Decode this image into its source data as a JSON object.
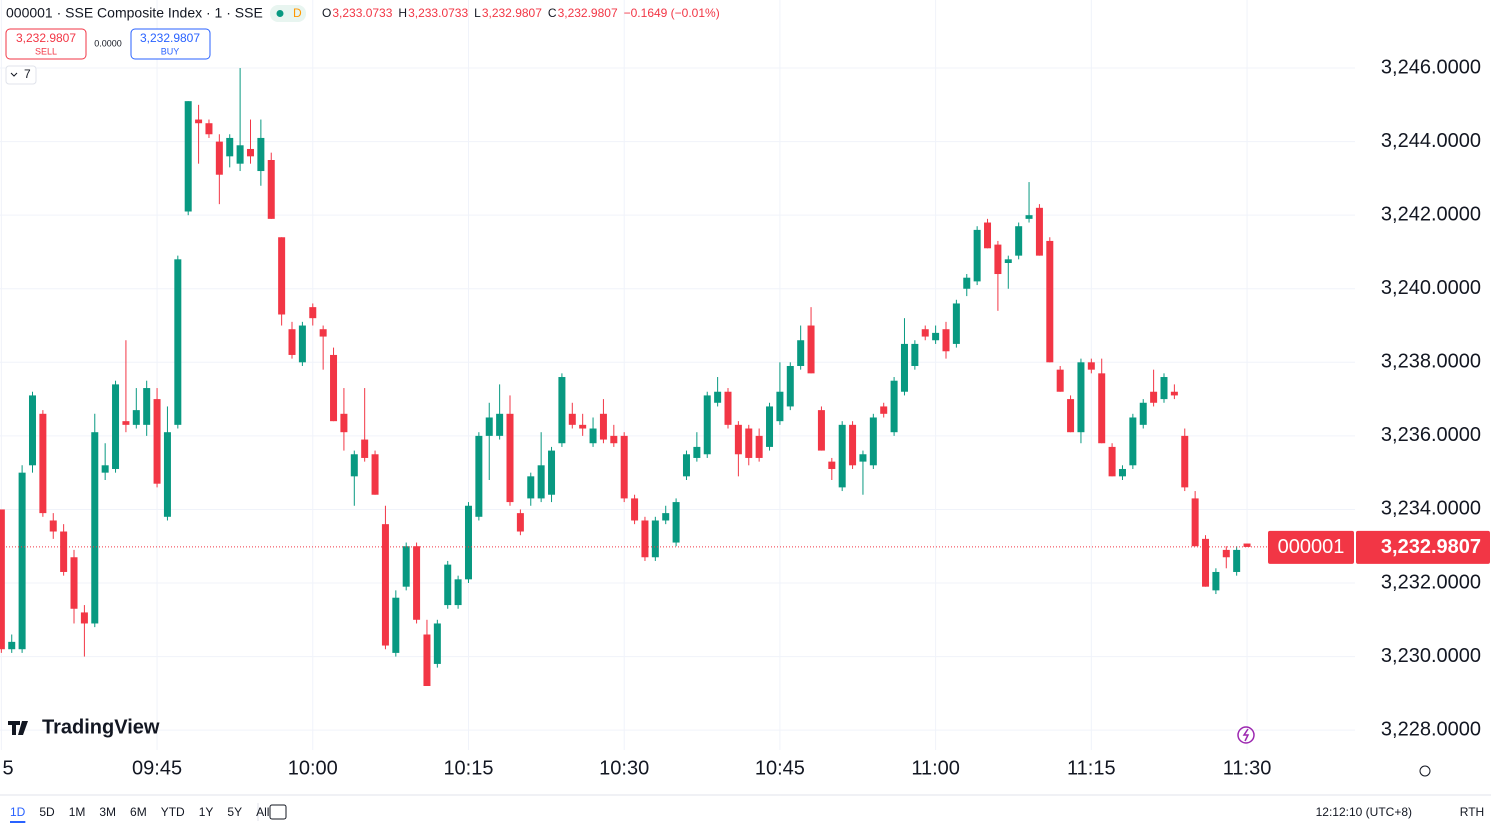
{
  "chart_data": {
    "type": "candlestick",
    "title": "000001 · SSE Composite Index · 1 · SSE",
    "badge": "D",
    "ohlc_legend": [
      {
        "label": "O",
        "value": "3,233.0733"
      },
      {
        "label": "H",
        "value": "3,233.0733"
      },
      {
        "label": "L",
        "value": "3,232.9807"
      },
      {
        "label": "C",
        "value": "3,232.9807"
      }
    ],
    "change": "−0.1649 (−0.01%)",
    "sell": {
      "price": "3,232.9807",
      "label": "SELL"
    },
    "spread": "0.0000",
    "buy": {
      "price": "3,232.9807",
      "label": "BUY"
    },
    "indicators_count": "7",
    "watermark": "TradingView",
    "up_color": "#089981",
    "down_color": "#f23645",
    "grid": true,
    "ylim": [
      3227.46,
      3247.85
    ],
    "xlim": [
      -0.13,
      130.4
    ],
    "yticks": [
      {
        "value": 3228,
        "label": "3,228.0000"
      },
      {
        "value": 3230,
        "label": "3,230.0000"
      },
      {
        "value": 3232,
        "label": "3,232.0000"
      },
      {
        "value": 3234,
        "label": "3,234.0000"
      },
      {
        "value": 3236,
        "label": "3,236.0000"
      },
      {
        "value": 3238,
        "label": "3,238.0000"
      },
      {
        "value": 3240,
        "label": "3,240.0000"
      },
      {
        "value": 3242,
        "label": "3,242.0000"
      },
      {
        "value": 3244,
        "label": "3,244.0000"
      },
      {
        "value": 3246,
        "label": "3,246.0000"
      }
    ],
    "xticks": [
      {
        "value": 0,
        "label": "5"
      },
      {
        "value": 15,
        "label": "09:45"
      },
      {
        "value": 30,
        "label": "10:00"
      },
      {
        "value": 45,
        "label": "10:15"
      },
      {
        "value": 60,
        "label": "10:30"
      },
      {
        "value": 75,
        "label": "10:45"
      },
      {
        "value": 90,
        "label": "11:00"
      },
      {
        "value": 105,
        "label": "11:15"
      },
      {
        "value": 120,
        "label": "11:30"
      }
    ],
    "last_price": {
      "value": 3232.9807,
      "label": "3,232.9807",
      "symbol": "000001"
    },
    "candles": [
      [
        3234.0,
        3234.0,
        3230.1,
        3230.2
      ],
      [
        3230.2,
        3230.6,
        3230.1,
        3230.4
      ],
      [
        3230.2,
        3235.2,
        3230.1,
        3235.0
      ],
      [
        3235.2,
        3237.2,
        3235.0,
        3237.1
      ],
      [
        3236.6,
        3236.7,
        3233.8,
        3233.9
      ],
      [
        3233.7,
        3233.9,
        3233.2,
        3233.4
      ],
      [
        3233.4,
        3233.6,
        3232.2,
        3232.3
      ],
      [
        3232.7,
        3232.9,
        3230.9,
        3231.3
      ],
      [
        3231.2,
        3231.4,
        3230.0,
        3230.9
      ],
      [
        3230.9,
        3236.6,
        3230.8,
        3236.1
      ],
      [
        3235.0,
        3235.8,
        3234.8,
        3235.2
      ],
      [
        3235.1,
        3237.5,
        3235.0,
        3237.4
      ],
      [
        3236.4,
        3238.6,
        3236.1,
        3236.3
      ],
      [
        3236.3,
        3237.3,
        3236.2,
        3236.7
      ],
      [
        3236.3,
        3237.5,
        3236.0,
        3237.3
      ],
      [
        3237.0,
        3237.3,
        3234.6,
        3234.7
      ],
      [
        3233.8,
        3236.8,
        3233.7,
        3236.1
      ],
      [
        3236.3,
        3240.9,
        3236.2,
        3240.8
      ],
      [
        3242.1,
        3245.1,
        3242.0,
        3245.1
      ],
      [
        3244.6,
        3245.0,
        3243.4,
        3244.5
      ],
      [
        3244.5,
        3244.6,
        3244.1,
        3244.2
      ],
      [
        3244.0,
        3244.2,
        3242.3,
        3243.1
      ],
      [
        3243.6,
        3244.2,
        3243.3,
        3244.1
      ],
      [
        3243.4,
        3246.0,
        3243.2,
        3243.9
      ],
      [
        3243.8,
        3244.6,
        3243.4,
        3243.6
      ],
      [
        3243.2,
        3244.6,
        3242.8,
        3244.1
      ],
      [
        3243.5,
        3243.7,
        3241.9,
        3241.9
      ],
      [
        3241.4,
        3241.4,
        3239.0,
        3239.3
      ],
      [
        3238.9,
        3239.1,
        3238.1,
        3238.2
      ],
      [
        3238.0,
        3239.1,
        3237.9,
        3239.0
      ],
      [
        3239.5,
        3239.6,
        3239.0,
        3239.2
      ],
      [
        3238.9,
        3239.0,
        3237.8,
        3238.7
      ],
      [
        3238.2,
        3238.4,
        3236.4,
        3236.4
      ],
      [
        3236.6,
        3237.3,
        3235.6,
        3236.1
      ],
      [
        3234.9,
        3235.6,
        3234.1,
        3235.5
      ],
      [
        3235.9,
        3237.3,
        3235.3,
        3235.4
      ],
      [
        3235.5,
        3235.6,
        3234.4,
        3234.4
      ],
      [
        3233.6,
        3234.1,
        3230.2,
        3230.3
      ],
      [
        3230.1,
        3231.8,
        3230.0,
        3231.6
      ],
      [
        3231.9,
        3233.1,
        3231.8,
        3233.0
      ],
      [
        3233.0,
        3233.1,
        3230.9,
        3231.0
      ],
      [
        3230.6,
        3231.0,
        3229.2,
        3229.2
      ],
      [
        3229.8,
        3231.0,
        3229.7,
        3230.9
      ],
      [
        3231.4,
        3232.6,
        3231.3,
        3232.5
      ],
      [
        3231.4,
        3232.2,
        3231.3,
        3232.1
      ],
      [
        3232.1,
        3234.2,
        3232.0,
        3234.1
      ],
      [
        3233.8,
        3236.1,
        3233.7,
        3236.0
      ],
      [
        3236.0,
        3236.9,
        3234.8,
        3236.5
      ],
      [
        3236.0,
        3237.4,
        3235.9,
        3236.6
      ],
      [
        3236.6,
        3237.1,
        3234.1,
        3234.2
      ],
      [
        3233.9,
        3234.0,
        3233.3,
        3233.4
      ],
      [
        3234.3,
        3235.0,
        3234.1,
        3234.9
      ],
      [
        3234.3,
        3236.1,
        3234.2,
        3235.2
      ],
      [
        3234.4,
        3235.7,
        3234.2,
        3235.6
      ],
      [
        3235.8,
        3237.7,
        3235.7,
        3237.6
      ],
      [
        3236.6,
        3236.9,
        3236.2,
        3236.3
      ],
      [
        3236.3,
        3236.6,
        3236.0,
        3236.2
      ],
      [
        3235.8,
        3236.5,
        3235.7,
        3236.2
      ],
      [
        3236.6,
        3237.0,
        3235.8,
        3235.9
      ],
      [
        3236.0,
        3236.3,
        3235.7,
        3235.8
      ],
      [
        3236.0,
        3236.1,
        3234.2,
        3234.3
      ],
      [
        3234.3,
        3234.4,
        3233.6,
        3233.7
      ],
      [
        3233.7,
        3233.8,
        3232.6,
        3232.7
      ],
      [
        3232.7,
        3233.8,
        3232.6,
        3233.7
      ],
      [
        3233.7,
        3234.1,
        3233.6,
        3233.9
      ],
      [
        3233.1,
        3234.3,
        3233.0,
        3234.2
      ],
      [
        3234.9,
        3235.6,
        3234.8,
        3235.5
      ],
      [
        3235.4,
        3236.1,
        3235.3,
        3235.7
      ],
      [
        3235.5,
        3237.2,
        3235.4,
        3237.1
      ],
      [
        3236.9,
        3237.6,
        3236.8,
        3237.2
      ],
      [
        3237.2,
        3237.3,
        3236.2,
        3236.3
      ],
      [
        3236.3,
        3236.4,
        3234.9,
        3235.5
      ],
      [
        3236.2,
        3236.3,
        3235.2,
        3235.4
      ],
      [
        3236.0,
        3236.2,
        3235.3,
        3235.4
      ],
      [
        3235.7,
        3236.9,
        3235.6,
        3236.8
      ],
      [
        3236.4,
        3238.0,
        3236.3,
        3237.2
      ],
      [
        3236.8,
        3238.0,
        3236.7,
        3237.9
      ],
      [
        3237.9,
        3239.0,
        3237.8,
        3238.6
      ],
      [
        3239.0,
        3239.5,
        3237.7,
        3237.7
      ],
      [
        3236.7,
        3236.8,
        3235.6,
        3235.6
      ],
      [
        3235.3,
        3235.4,
        3234.8,
        3235.1
      ],
      [
        3234.6,
        3236.4,
        3234.5,
        3236.3
      ],
      [
        3236.3,
        3236.4,
        3235.1,
        3235.2
      ],
      [
        3235.3,
        3235.6,
        3234.4,
        3235.5
      ],
      [
        3235.2,
        3236.6,
        3235.1,
        3236.5
      ],
      [
        3236.8,
        3236.9,
        3236.5,
        3236.6
      ],
      [
        3236.1,
        3237.6,
        3236.0,
        3237.5
      ],
      [
        3237.2,
        3239.2,
        3237.1,
        3238.5
      ],
      [
        3237.9,
        3238.6,
        3237.8,
        3238.5
      ],
      [
        3238.9,
        3239.0,
        3238.6,
        3238.7
      ],
      [
        3238.6,
        3239.0,
        3238.5,
        3238.8
      ],
      [
        3238.9,
        3239.1,
        3238.1,
        3238.3
      ],
      [
        3238.5,
        3239.7,
        3238.4,
        3239.6
      ],
      [
        3240.0,
        3240.4,
        3239.8,
        3240.3
      ],
      [
        3240.2,
        3241.7,
        3240.1,
        3241.6
      ],
      [
        3241.8,
        3241.9,
        3241.1,
        3241.1
      ],
      [
        3241.2,
        3241.3,
        3239.4,
        3240.4
      ],
      [
        3240.7,
        3240.9,
        3240.0,
        3240.8
      ],
      [
        3240.9,
        3241.8,
        3240.8,
        3241.7
      ],
      [
        3241.9,
        3242.9,
        3241.8,
        3242.0
      ],
      [
        3242.2,
        3242.3,
        3240.9,
        3240.9
      ],
      [
        3241.3,
        3241.4,
        3238.0,
        3238.0
      ],
      [
        3237.8,
        3237.9,
        3237.2,
        3237.2
      ],
      [
        3237.0,
        3237.1,
        3236.1,
        3236.1
      ],
      [
        3236.1,
        3238.1,
        3235.8,
        3238.0
      ],
      [
        3238.0,
        3238.1,
        3237.7,
        3237.8
      ],
      [
        3237.7,
        3238.1,
        3235.8,
        3235.8
      ],
      [
        3235.7,
        3235.8,
        3234.9,
        3234.9
      ],
      [
        3234.9,
        3235.2,
        3234.8,
        3235.1
      ],
      [
        3235.2,
        3236.6,
        3235.1,
        3236.5
      ],
      [
        3236.3,
        3237.0,
        3236.2,
        3236.9
      ],
      [
        3237.2,
        3237.8,
        3236.8,
        3236.9
      ],
      [
        3237.0,
        3237.7,
        3236.9,
        3237.6
      ],
      [
        3237.2,
        3237.4,
        3237.0,
        3237.1
      ],
      [
        3236.0,
        3236.2,
        3234.5,
        3234.6
      ],
      [
        3234.3,
        3234.5,
        3233.0,
        3233.0
      ],
      [
        3233.2,
        3233.3,
        3231.9,
        3231.9
      ],
      [
        3231.8,
        3232.4,
        3231.7,
        3232.3
      ],
      [
        3232.9,
        3233.0,
        3232.4,
        3232.7
      ],
      [
        3232.3,
        3233.0,
        3232.2,
        3232.9
      ],
      [
        3233.0733,
        3233.0733,
        3232.9807,
        3232.9807
      ]
    ],
    "ranges": [
      "1D",
      "5D",
      "1M",
      "3M",
      "6M",
      "YTD",
      "1Y",
      "5Y",
      "All"
    ],
    "clock": "12:12:10 (UTC+8)",
    "session": "RTH"
  }
}
